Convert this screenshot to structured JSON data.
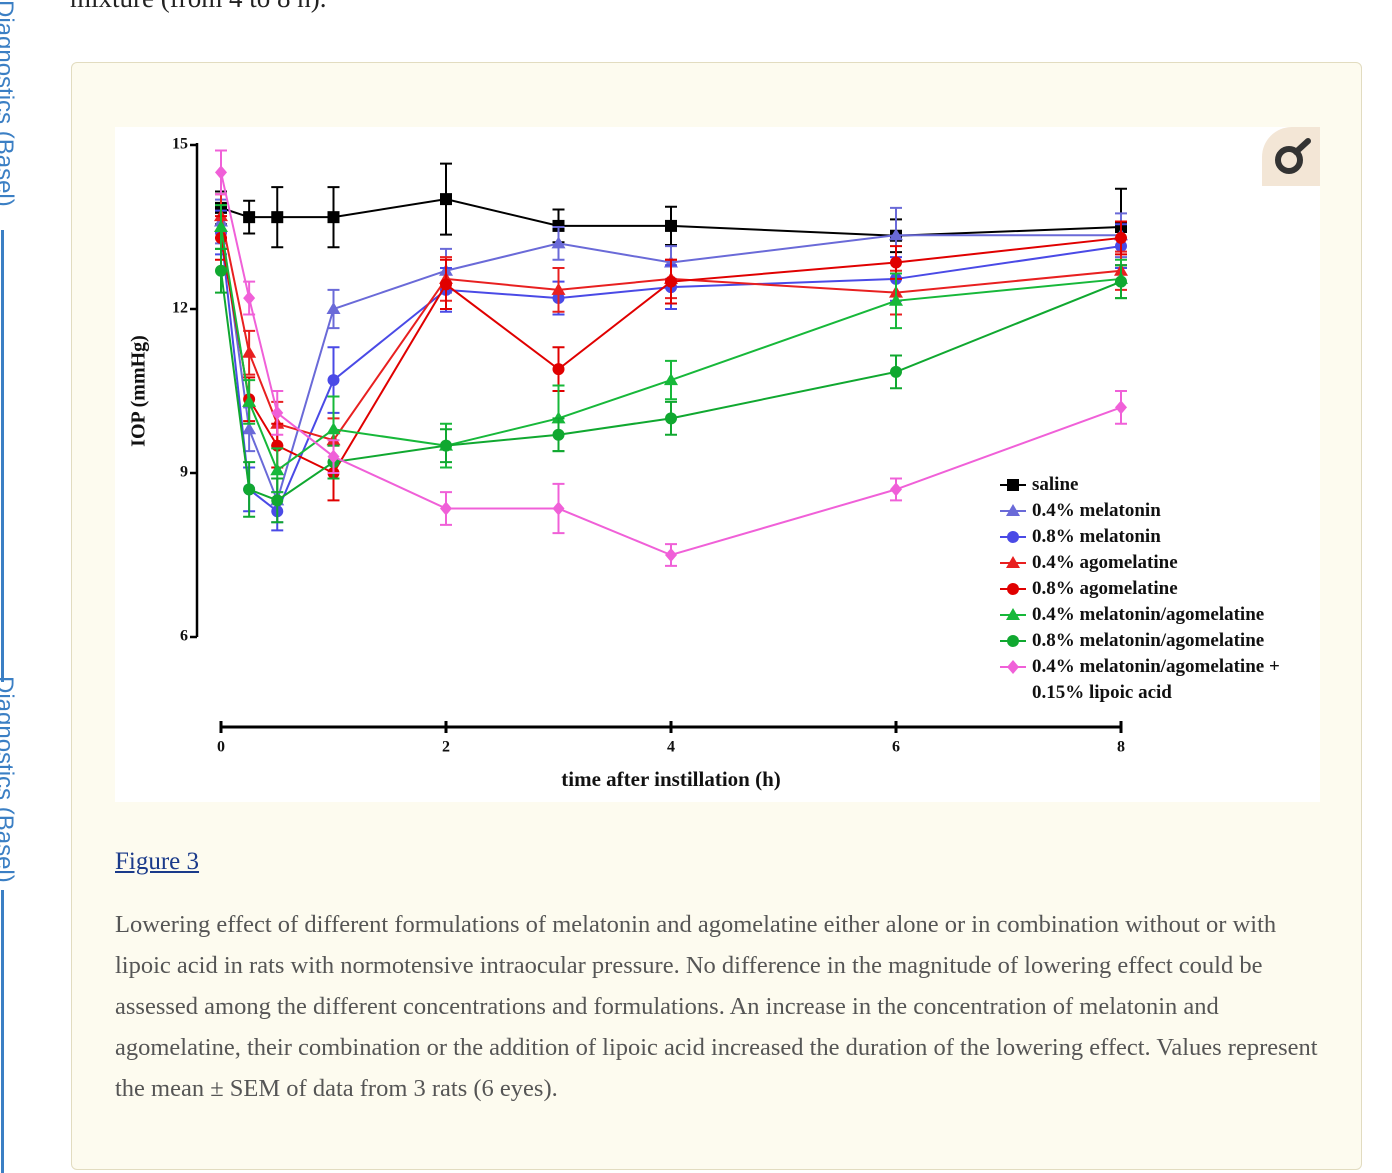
{
  "page": {
    "top_text": "mixture (from 4 to 8 h).",
    "sidebar_links": [
      "Diagnostics (Basel)",
      "Diagnostics (Basel)"
    ],
    "figure_label": "Figure 3",
    "caption": "Lowering effect of different formulations of melatonin and agomelatine either alone or in combination without or with lipoic acid in rats with normotensive intraocular pressure. No difference in the magnitude of lowering effect could be assessed among the different concentrations and formulations. An increase in the concentration of melatonin and agomelatine, their combination or the addition of lipoic acid increased the duration of the lowering effect. Values represent the mean ± SEM of data from 3 rats (6 eyes)."
  },
  "chart_data": {
    "type": "line",
    "x_label": "time after instillation (h)",
    "y_label": "IOP (mmHg)",
    "x": [
      0,
      0.25,
      0.5,
      1,
      2,
      3,
      4,
      6,
      8
    ],
    "xlim": [
      0,
      8
    ],
    "xticks": [
      0,
      2,
      4,
      6,
      8
    ],
    "ylim": [
      6,
      15
    ],
    "yticks": [
      6,
      9,
      12,
      15
    ],
    "series": [
      {
        "name": "saline",
        "color": "#000000",
        "marker": "square",
        "values": [
          13.85,
          13.68,
          13.68,
          13.68,
          14.01,
          13.52,
          13.52,
          13.34,
          13.5
        ],
        "errors": [
          0.3,
          0.3,
          0.55,
          0.55,
          0.65,
          0.3,
          0.35,
          0.3,
          0.7
        ]
      },
      {
        "name": "0.4% melatonin",
        "color": "#6a6ad8",
        "marker": "triangle",
        "values": [
          13.6,
          9.8,
          8.5,
          12.0,
          12.7,
          13.2,
          12.85,
          13.35,
          13.35
        ],
        "errors": [
          0.4,
          0.4,
          0.4,
          0.35,
          0.4,
          0.3,
          0.3,
          0.5,
          0.4
        ]
      },
      {
        "name": "0.8% melatonin",
        "color": "#4a4ae6",
        "marker": "circle",
        "values": [
          13.4,
          8.7,
          8.3,
          10.7,
          12.35,
          12.2,
          12.4,
          12.55,
          13.15
        ],
        "errors": [
          0.4,
          0.4,
          0.35,
          0.6,
          0.4,
          0.3,
          0.4,
          0.4,
          0.4
        ]
      },
      {
        "name": "0.4% agomelatine",
        "color": "#e82020",
        "marker": "triangle",
        "values": [
          13.7,
          11.2,
          9.9,
          9.6,
          12.55,
          12.35,
          12.55,
          12.3,
          12.7
        ],
        "errors": [
          0.4,
          0.4,
          0.4,
          0.4,
          0.4,
          0.4,
          0.35,
          0.4,
          0.35
        ]
      },
      {
        "name": "0.8% agomelatine",
        "color": "#e00000",
        "marker": "circle",
        "values": [
          13.3,
          10.35,
          9.5,
          9.0,
          12.45,
          10.9,
          12.5,
          12.85,
          13.3
        ],
        "errors": [
          0.4,
          0.4,
          0.4,
          0.5,
          0.45,
          0.4,
          0.4,
          0.3,
          0.3
        ]
      },
      {
        "name": "0.4% melatonin/agomelatine",
        "color": "#17b83a",
        "marker": "triangle",
        "values": [
          13.5,
          10.3,
          9.05,
          9.8,
          9.5,
          10.0,
          10.7,
          12.15,
          12.55
        ],
        "errors": [
          0.4,
          0.4,
          0.4,
          0.6,
          0.4,
          0.6,
          0.35,
          0.5,
          0.35
        ]
      },
      {
        "name": "0.8% melatonin/agomelatine",
        "color": "#10a830",
        "marker": "circle",
        "values": [
          12.7,
          8.7,
          8.5,
          9.2,
          9.5,
          9.7,
          10.0,
          10.85,
          12.5
        ],
        "errors": [
          0.4,
          0.5,
          0.4,
          0.3,
          0.3,
          0.3,
          0.3,
          0.3,
          0.3
        ]
      },
      {
        "name": "0.4% melatonin/agomelatine + 0.15% lipoic acid",
        "color": "#f060d8",
        "marker": "diamond",
        "values": [
          14.5,
          12.2,
          10.1,
          9.3,
          8.35,
          8.35,
          7.5,
          8.7,
          10.2
        ],
        "errors": [
          0.4,
          0.3,
          0.4,
          0.3,
          0.3,
          0.45,
          0.2,
          0.2,
          0.3
        ]
      }
    ]
  }
}
